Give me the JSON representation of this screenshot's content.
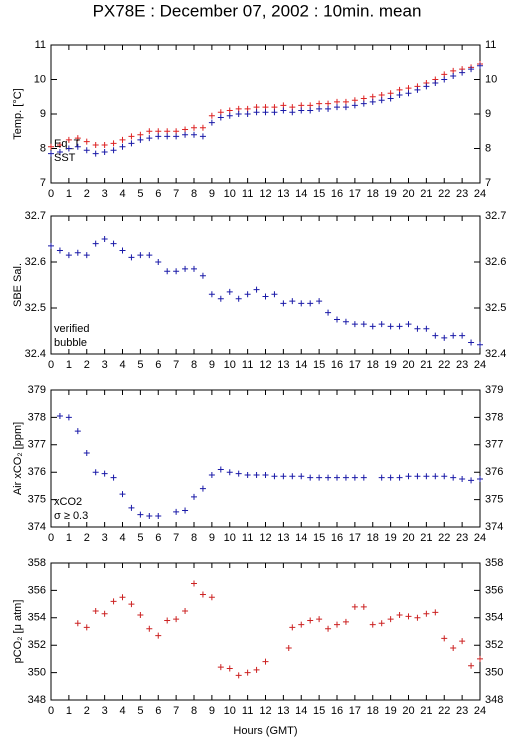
{
  "title": "PX78E : December 07, 2002 : 10min. mean",
  "chart_data": [
    {
      "type": "scatter",
      "ylabel": "Temp. [°C]",
      "xlim": [
        0,
        24
      ],
      "xticks": [
        0,
        1,
        2,
        3,
        4,
        5,
        6,
        7,
        8,
        9,
        10,
        11,
        12,
        13,
        14,
        15,
        16,
        17,
        18,
        19,
        20,
        21,
        22,
        23,
        24
      ],
      "ylim": [
        7,
        11
      ],
      "yticks": [
        7,
        8,
        9,
        10,
        11
      ],
      "series": [
        {
          "name": "Eq_T",
          "color": "#dd2222",
          "x": [
            0,
            0.5,
            1,
            1.5,
            2,
            2.5,
            3,
            3.5,
            4,
            4.5,
            5,
            5.5,
            6,
            6.5,
            7,
            7.5,
            8,
            8.5,
            9,
            9.5,
            10,
            10.5,
            11,
            11.5,
            12,
            12.5,
            13,
            13.5,
            14,
            14.5,
            15,
            15.5,
            16,
            16.5,
            17,
            17.5,
            18,
            18.5,
            19,
            19.5,
            20,
            20.5,
            21,
            21.5,
            22,
            22.5,
            23,
            23.5,
            24
          ],
          "values": [
            8.05,
            8.1,
            8.25,
            8.3,
            8.2,
            8.1,
            8.1,
            8.15,
            8.25,
            8.35,
            8.4,
            8.5,
            8.5,
            8.5,
            8.5,
            8.55,
            8.6,
            8.6,
            8.95,
            9.05,
            9.1,
            9.15,
            9.15,
            9.2,
            9.2,
            9.2,
            9.25,
            9.2,
            9.25,
            9.25,
            9.3,
            9.3,
            9.35,
            9.35,
            9.4,
            9.45,
            9.5,
            9.55,
            9.6,
            9.7,
            9.75,
            9.8,
            9.9,
            10.0,
            10.15,
            10.25,
            10.3,
            10.35,
            10.45
          ]
        },
        {
          "name": "SST",
          "color": "#1a1aa8",
          "x": [
            0,
            0.5,
            1,
            1.5,
            2,
            2.5,
            3,
            3.5,
            4,
            4.5,
            5,
            5.5,
            6,
            6.5,
            7,
            7.5,
            8,
            8.5,
            9,
            9.5,
            10,
            10.5,
            11,
            11.5,
            12,
            12.5,
            13,
            13.5,
            14,
            14.5,
            15,
            15.5,
            16,
            16.5,
            17,
            17.5,
            18,
            18.5,
            19,
            19.5,
            20,
            20.5,
            21,
            21.5,
            22,
            22.5,
            23,
            23.5,
            24
          ],
          "values": [
            7.85,
            7.9,
            8.0,
            8.05,
            7.95,
            7.85,
            7.9,
            7.95,
            8.05,
            8.15,
            8.25,
            8.3,
            8.35,
            8.35,
            8.35,
            8.4,
            8.4,
            8.35,
            8.75,
            8.9,
            8.95,
            9.0,
            9.0,
            9.05,
            9.05,
            9.05,
            9.1,
            9.05,
            9.1,
            9.1,
            9.15,
            9.15,
            9.2,
            9.2,
            9.25,
            9.3,
            9.35,
            9.4,
            9.45,
            9.55,
            9.6,
            9.7,
            9.8,
            9.9,
            10.0,
            10.1,
            10.2,
            10.3,
            10.4
          ]
        }
      ]
    },
    {
      "type": "scatter",
      "ylabel": "SBE Sal.",
      "xlim": [
        0,
        24
      ],
      "xticks": [
        0,
        1,
        2,
        3,
        4,
        5,
        6,
        7,
        8,
        9,
        10,
        11,
        12,
        13,
        14,
        15,
        16,
        17,
        18,
        19,
        20,
        21,
        22,
        23,
        24
      ],
      "ylim": [
        32.4,
        32.7
      ],
      "yticks": [
        32.4,
        32.5,
        32.6,
        32.7
      ],
      "series": [
        {
          "name": "verified",
          "color": "#1a1aa8",
          "x": [
            0,
            0.5,
            1,
            1.5,
            2,
            2.5,
            3,
            3.5,
            4,
            4.5,
            5,
            5.5,
            6,
            6.5,
            7,
            7.5,
            8,
            8.5,
            9,
            9.5,
            10,
            10.5,
            11,
            11.5,
            12,
            12.5,
            13,
            13.5,
            14,
            14.5,
            15,
            15.5,
            16,
            16.5,
            17,
            17.5,
            18,
            18.5,
            19,
            19.5,
            20,
            20.5,
            21,
            21.5,
            22,
            22.5,
            23,
            23.5,
            24
          ],
          "values": [
            32.635,
            32.625,
            32.615,
            32.62,
            32.615,
            32.64,
            32.65,
            32.64,
            32.625,
            32.61,
            32.615,
            32.615,
            32.6,
            32.58,
            32.58,
            32.585,
            32.585,
            32.57,
            32.53,
            32.52,
            32.535,
            32.52,
            32.53,
            32.54,
            32.525,
            32.53,
            32.51,
            32.515,
            32.51,
            32.51,
            32.515,
            32.49,
            32.475,
            32.47,
            32.465,
            32.465,
            32.46,
            32.465,
            32.46,
            32.46,
            32.465,
            32.455,
            32.455,
            32.44,
            32.435,
            32.44,
            32.44,
            32.425,
            32.42
          ]
        }
      ],
      "notes": [
        {
          "text": "bubble",
          "color": "#cc00cc"
        }
      ]
    },
    {
      "type": "scatter",
      "ylabel": "Air xCO₂ [ppm]",
      "xlim": [
        0,
        24
      ],
      "xticks": [
        0,
        1,
        2,
        3,
        4,
        5,
        6,
        7,
        8,
        9,
        10,
        11,
        12,
        13,
        14,
        15,
        16,
        17,
        18,
        19,
        20,
        21,
        22,
        23,
        24
      ],
      "ylim": [
        374,
        379
      ],
      "yticks": [
        374,
        375,
        376,
        377,
        378,
        379
      ],
      "series": [
        {
          "name": "xCO2",
          "color": "#1a1aa8",
          "x": [
            0.5,
            1,
            1.5,
            2,
            2.5,
            3,
            3.5,
            4,
            4.5,
            5,
            5.5,
            6,
            7,
            7.5,
            8,
            8.5,
            9,
            9.5,
            10,
            10.5,
            11,
            11.5,
            12,
            12.5,
            13,
            13.5,
            14,
            14.5,
            15,
            15.5,
            16,
            16.5,
            17,
            17.5,
            18.5,
            19,
            19.5,
            20,
            20.5,
            21,
            21.5,
            22,
            22.5,
            23,
            23.5,
            24
          ],
          "values": [
            378.05,
            378.0,
            377.5,
            376.7,
            376.0,
            375.95,
            375.8,
            375.2,
            374.7,
            374.45,
            374.4,
            374.4,
            374.55,
            374.6,
            375.1,
            375.4,
            375.9,
            376.1,
            376.0,
            375.95,
            375.9,
            375.9,
            375.9,
            375.85,
            375.85,
            375.85,
            375.85,
            375.8,
            375.8,
            375.8,
            375.8,
            375.8,
            375.8,
            375.8,
            375.8,
            375.8,
            375.8,
            375.85,
            375.85,
            375.85,
            375.85,
            375.85,
            375.8,
            375.75,
            375.7,
            375.75
          ]
        }
      ],
      "notes": [
        {
          "text": "σ ≥ 0.3",
          "color": "#cc00cc"
        }
      ]
    },
    {
      "type": "scatter",
      "ylabel": "pCO₂ [μ atm]",
      "xlabel": "Hours (GMT)",
      "xlim": [
        0,
        24
      ],
      "xticks": [
        0,
        1,
        2,
        3,
        4,
        5,
        6,
        7,
        8,
        9,
        10,
        11,
        12,
        13,
        14,
        15,
        16,
        17,
        18,
        19,
        20,
        21,
        22,
        23,
        24
      ],
      "ylim": [
        348,
        358
      ],
      "yticks": [
        348,
        350,
        352,
        354,
        356,
        358
      ],
      "series": [
        {
          "name": "pCO2",
          "color": "#cc2222",
          "x": [
            1.5,
            2,
            2.5,
            3,
            3.5,
            4,
            4.5,
            5,
            5.5,
            6,
            6.5,
            7,
            7.5,
            8,
            8.5,
            9,
            9.5,
            10,
            10.5,
            11,
            11.5,
            12,
            13.3,
            13.5,
            14,
            14.5,
            15,
            15.5,
            16,
            16.5,
            17,
            17.5,
            18,
            18.5,
            19,
            19.5,
            20,
            20.5,
            21,
            21.5,
            22,
            22.5,
            23,
            23.5,
            24
          ],
          "values": [
            353.6,
            353.3,
            354.5,
            354.3,
            355.2,
            355.5,
            355.0,
            354.2,
            353.2,
            352.7,
            353.8,
            353.9,
            354.5,
            356.5,
            355.7,
            355.5,
            350.4,
            350.3,
            349.8,
            350.0,
            350.2,
            350.8,
            351.8,
            353.3,
            353.5,
            353.8,
            353.9,
            353.2,
            353.5,
            353.7,
            354.8,
            354.8,
            353.5,
            353.6,
            353.9,
            354.2,
            354.1,
            354.0,
            354.3,
            354.4,
            352.5,
            351.8,
            352.3,
            350.5,
            351.0
          ]
        }
      ]
    }
  ]
}
